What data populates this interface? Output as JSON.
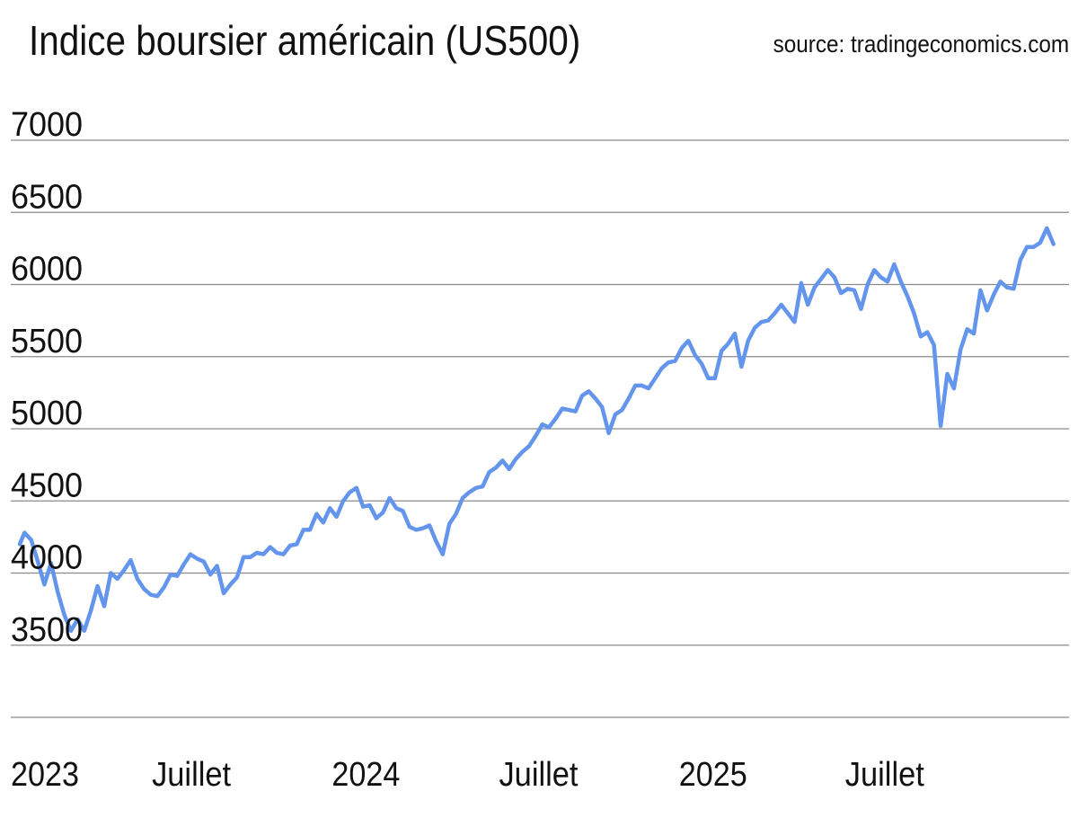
{
  "chart_data": {
    "type": "line",
    "title": "Indice boursier américain (US500)",
    "source": "source: tradingeconomics.com",
    "xlabel": "",
    "ylabel": "",
    "x_range": [
      "2023-01-01",
      "2025-12-31"
    ],
    "ylim": [
      3000,
      7000
    ],
    "y_ticks": [
      3500,
      4000,
      4500,
      5000,
      5500,
      6000,
      6500,
      7000
    ],
    "x_ticks": [
      {
        "date": "2023-01-01",
        "label": "2023"
      },
      {
        "date": "2023-07-01",
        "label": "Juillet"
      },
      {
        "date": "2024-01-01",
        "label": "2024"
      },
      {
        "date": "2024-07-01",
        "label": "Juillet"
      },
      {
        "date": "2025-01-01",
        "label": "2025"
      },
      {
        "date": "2025-07-01",
        "label": "Juillet"
      }
    ],
    "grid": true,
    "legend": "none",
    "colors": {
      "series": "#6495ed",
      "grid": "#8a8a8a",
      "text": "#111111"
    },
    "series": [
      {
        "points": [
          [
            "2023-01-01",
            4200
          ],
          [
            "2023-01-06",
            4280
          ],
          [
            "2023-01-13",
            4230
          ],
          [
            "2023-01-20",
            4080
          ],
          [
            "2023-01-27",
            3920
          ],
          [
            "2023-02-03",
            4070
          ],
          [
            "2023-02-10",
            3870
          ],
          [
            "2023-02-17",
            3710
          ],
          [
            "2023-02-24",
            3600
          ],
          [
            "2023-03-03",
            3680
          ],
          [
            "2023-03-10",
            3600
          ],
          [
            "2023-03-17",
            3740
          ],
          [
            "2023-03-24",
            3910
          ],
          [
            "2023-03-31",
            3770
          ],
          [
            "2023-04-07",
            4000
          ],
          [
            "2023-04-14",
            3960
          ],
          [
            "2023-04-21",
            4020
          ],
          [
            "2023-04-28",
            4090
          ],
          [
            "2023-05-05",
            3960
          ],
          [
            "2023-05-12",
            3890
          ],
          [
            "2023-05-19",
            3850
          ],
          [
            "2023-05-26",
            3840
          ],
          [
            "2023-06-02",
            3900
          ],
          [
            "2023-06-09",
            3990
          ],
          [
            "2023-06-16",
            3980
          ],
          [
            "2023-06-23",
            4060
          ],
          [
            "2023-06-30",
            4130
          ],
          [
            "2023-07-07",
            4100
          ],
          [
            "2023-07-14",
            4080
          ],
          [
            "2023-07-21",
            3990
          ],
          [
            "2023-07-28",
            4050
          ],
          [
            "2023-08-04",
            3860
          ],
          [
            "2023-08-11",
            3920
          ],
          [
            "2023-08-18",
            3970
          ],
          [
            "2023-08-25",
            4110
          ],
          [
            "2023-09-01",
            4110
          ],
          [
            "2023-09-08",
            4140
          ],
          [
            "2023-09-15",
            4130
          ],
          [
            "2023-09-22",
            4180
          ],
          [
            "2023-09-29",
            4140
          ],
          [
            "2023-10-06",
            4130
          ],
          [
            "2023-10-13",
            4190
          ],
          [
            "2023-10-20",
            4200
          ],
          [
            "2023-10-27",
            4300
          ],
          [
            "2023-11-03",
            4300
          ],
          [
            "2023-11-10",
            4410
          ],
          [
            "2023-11-17",
            4350
          ],
          [
            "2023-11-24",
            4450
          ],
          [
            "2023-12-01",
            4390
          ],
          [
            "2023-12-08",
            4500
          ],
          [
            "2023-12-15",
            4560
          ],
          [
            "2023-12-22",
            4590
          ],
          [
            "2023-12-29",
            4460
          ],
          [
            "2024-01-05",
            4470
          ],
          [
            "2024-01-12",
            4380
          ],
          [
            "2024-01-19",
            4420
          ],
          [
            "2024-01-26",
            4520
          ],
          [
            "2024-02-02",
            4450
          ],
          [
            "2024-02-09",
            4430
          ],
          [
            "2024-02-16",
            4320
          ],
          [
            "2024-02-23",
            4300
          ],
          [
            "2024-03-01",
            4310
          ],
          [
            "2024-03-08",
            4330
          ],
          [
            "2024-03-15",
            4220
          ],
          [
            "2024-03-22",
            4130
          ],
          [
            "2024-03-29",
            4340
          ],
          [
            "2024-04-05",
            4410
          ],
          [
            "2024-04-12",
            4520
          ],
          [
            "2024-04-19",
            4560
          ],
          [
            "2024-04-26",
            4590
          ],
          [
            "2024-05-03",
            4600
          ],
          [
            "2024-05-10",
            4700
          ],
          [
            "2024-05-17",
            4730
          ],
          [
            "2024-05-24",
            4780
          ],
          [
            "2024-05-31",
            4720
          ],
          [
            "2024-06-07",
            4790
          ],
          [
            "2024-06-14",
            4840
          ],
          [
            "2024-06-21",
            4880
          ],
          [
            "2024-06-28",
            4950
          ],
          [
            "2024-07-05",
            5030
          ],
          [
            "2024-07-12",
            5010
          ],
          [
            "2024-07-19",
            5070
          ],
          [
            "2024-07-26",
            5140
          ],
          [
            "2024-08-02",
            5130
          ],
          [
            "2024-08-09",
            5120
          ],
          [
            "2024-08-16",
            5230
          ],
          [
            "2024-08-23",
            5260
          ],
          [
            "2024-08-30",
            5210
          ],
          [
            "2024-09-06",
            5150
          ],
          [
            "2024-09-13",
            4970
          ],
          [
            "2024-09-20",
            5100
          ],
          [
            "2024-09-27",
            5130
          ],
          [
            "2024-10-04",
            5210
          ],
          [
            "2024-10-11",
            5300
          ],
          [
            "2024-10-18",
            5300
          ],
          [
            "2024-10-25",
            5280
          ],
          [
            "2024-11-01",
            5350
          ],
          [
            "2024-11-08",
            5420
          ],
          [
            "2024-11-15",
            5460
          ],
          [
            "2024-11-22",
            5470
          ],
          [
            "2024-11-29",
            5560
          ],
          [
            "2024-12-06",
            5610
          ],
          [
            "2024-12-13",
            5510
          ],
          [
            "2024-12-20",
            5450
          ],
          [
            "2024-12-27",
            5350
          ],
          [
            "2025-01-03",
            5350
          ],
          [
            "2025-01-10",
            5540
          ],
          [
            "2025-01-17",
            5590
          ],
          [
            "2025-01-24",
            5660
          ],
          [
            "2025-01-31",
            5430
          ],
          [
            "2025-02-07",
            5610
          ],
          [
            "2025-02-14",
            5700
          ],
          [
            "2025-02-21",
            5740
          ],
          [
            "2025-02-28",
            5750
          ],
          [
            "2025-03-07",
            5800
          ],
          [
            "2025-03-14",
            5860
          ],
          [
            "2025-03-21",
            5800
          ],
          [
            "2025-03-28",
            5740
          ],
          [
            "2025-04-04",
            6010
          ],
          [
            "2025-04-11",
            5860
          ],
          [
            "2025-04-18",
            5980
          ],
          [
            "2025-04-25",
            6040
          ],
          [
            "2025-05-02",
            6100
          ],
          [
            "2025-05-09",
            6050
          ],
          [
            "2025-05-16",
            5940
          ],
          [
            "2025-05-23",
            5970
          ],
          [
            "2025-05-30",
            5960
          ],
          [
            "2025-06-06",
            5830
          ],
          [
            "2025-06-13",
            6000
          ],
          [
            "2025-06-20",
            6100
          ],
          [
            "2025-06-27",
            6050
          ],
          [
            "2025-07-04",
            6020
          ],
          [
            "2025-07-11",
            6140
          ],
          [
            "2025-07-18",
            6020
          ],
          [
            "2025-07-25",
            5920
          ],
          [
            "2025-08-01",
            5800
          ],
          [
            "2025-08-08",
            5640
          ],
          [
            "2025-08-15",
            5670
          ],
          [
            "2025-08-22",
            5580
          ],
          [
            "2025-08-29",
            5020
          ],
          [
            "2025-09-05",
            5380
          ],
          [
            "2025-09-12",
            5280
          ],
          [
            "2025-09-19",
            5550
          ],
          [
            "2025-09-26",
            5690
          ],
          [
            "2025-10-03",
            5660
          ],
          [
            "2025-10-10",
            5960
          ],
          [
            "2025-10-17",
            5820
          ],
          [
            "2025-10-24",
            5930
          ],
          [
            "2025-10-31",
            6020
          ],
          [
            "2025-11-07",
            5980
          ],
          [
            "2025-11-14",
            5970
          ],
          [
            "2025-11-21",
            6170
          ],
          [
            "2025-11-28",
            6260
          ],
          [
            "2025-12-05",
            6260
          ],
          [
            "2025-12-12",
            6290
          ],
          [
            "2025-12-19",
            6390
          ],
          [
            "2025-12-26",
            6280
          ]
        ]
      }
    ]
  }
}
